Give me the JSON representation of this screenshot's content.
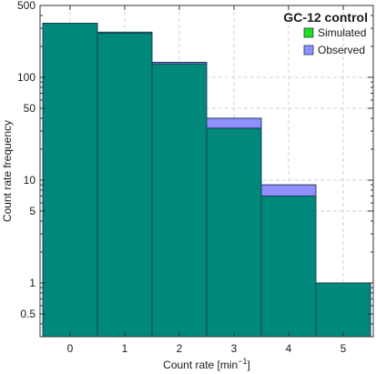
{
  "chart_data": {
    "type": "bar",
    "title": "GC-12 control",
    "xlabel": "Count rate [min",
    "xlabel_sup": "−1",
    "xlabel_end": "]",
    "ylabel": "Count rate frequency",
    "y_scale": "log",
    "ylim": [
      0.3,
      500
    ],
    "xlim": [
      -0.55,
      5.55
    ],
    "categories": [
      0,
      1,
      2,
      3,
      4,
      5
    ],
    "x_tick_labels": [
      "0",
      "1",
      "2",
      "3",
      "4",
      "5"
    ],
    "y_ticks": [
      0.5,
      1,
      5,
      10,
      50,
      100,
      500
    ],
    "y_tick_labels": [
      "0.5",
      "1",
      "5",
      "10",
      "50",
      "100",
      "500"
    ],
    "grid": true,
    "legend_position": "top-right",
    "series": [
      {
        "name": "Simulated",
        "values": [
          336,
          275,
          135,
          32,
          7,
          1
        ],
        "color": "#22dd22"
      },
      {
        "name": "Observed",
        "values": [
          336,
          268,
          140,
          40,
          9,
          1
        ],
        "color": "#8f8fff"
      }
    ],
    "overlap_color": "#00897b"
  }
}
